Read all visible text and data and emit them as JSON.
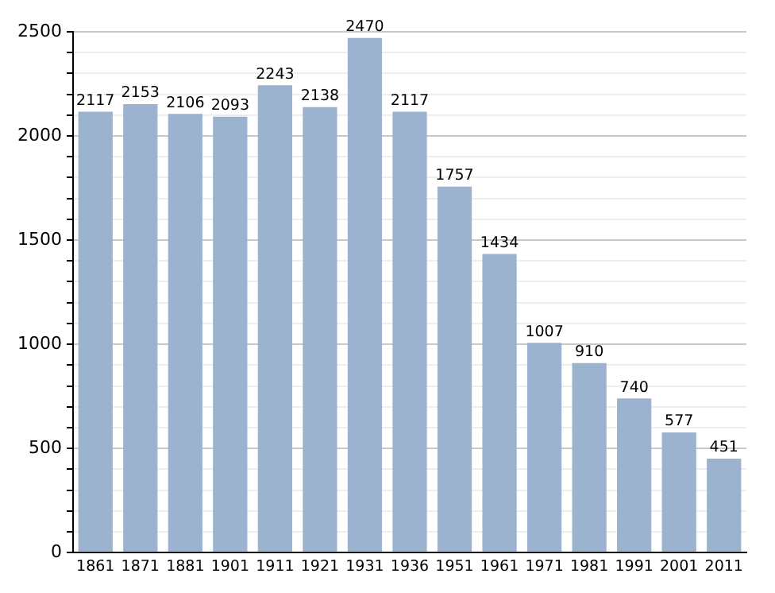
{
  "chart_data": {
    "type": "bar",
    "categories": [
      "1861",
      "1871",
      "1881",
      "1901",
      "1911",
      "1921",
      "1931",
      "1936",
      "1951",
      "1961",
      "1971",
      "1981",
      "1991",
      "2001",
      "2011"
    ],
    "values": [
      2117,
      2153,
      2106,
      2093,
      2243,
      2138,
      2470,
      2117,
      1757,
      1434,
      1007,
      910,
      740,
      577,
      451
    ],
    "color": "#9bb3cf",
    "data_labels": true,
    "ylim": [
      0,
      2500
    ],
    "yticks": [
      0,
      {
        "value": 100,
        "label": null
      },
      {
        "value": 200,
        "label": null
      },
      {
        "value": 300,
        "label": null
      },
      {
        "value": 400,
        "label": null
      },
      500,
      {
        "value": 600,
        "label": null
      },
      {
        "value": 700,
        "label": null
      },
      {
        "value": 800,
        "label": null
      },
      {
        "value": 900,
        "label": null
      },
      1000,
      {
        "value": 1100,
        "label": null
      },
      {
        "value": 1200,
        "label": null
      },
      {
        "value": 1300,
        "label": null
      },
      {
        "value": 1400,
        "label": null
      },
      1500,
      {
        "value": 1600,
        "label": null
      },
      {
        "value": 1700,
        "label": null
      },
      {
        "value": 1800,
        "label": null
      },
      {
        "value": 1900,
        "label": null
      },
      2000,
      {
        "value": 2100,
        "label": null
      },
      {
        "value": 2200,
        "label": null
      },
      {
        "value": 2300,
        "label": null
      },
      {
        "value": 2400,
        "label": null
      },
      2500
    ],
    "grid": "y"
  }
}
